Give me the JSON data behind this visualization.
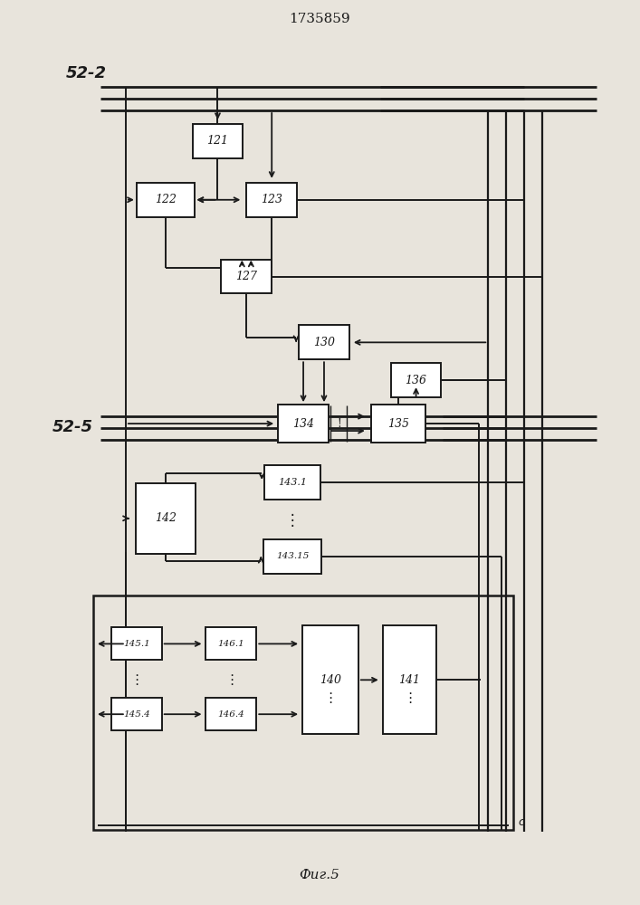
{
  "title": "1735859",
  "fig_label": "Фиг.5",
  "bg_color": "#e8e4dc",
  "line_color": "#1a1a1a",
  "box_color": "#ffffff",
  "bus_52_2_label": "52-2",
  "bus_52_5_label": "52-5",
  "figsize": [
    7.07,
    10.0
  ],
  "dpi": 100
}
